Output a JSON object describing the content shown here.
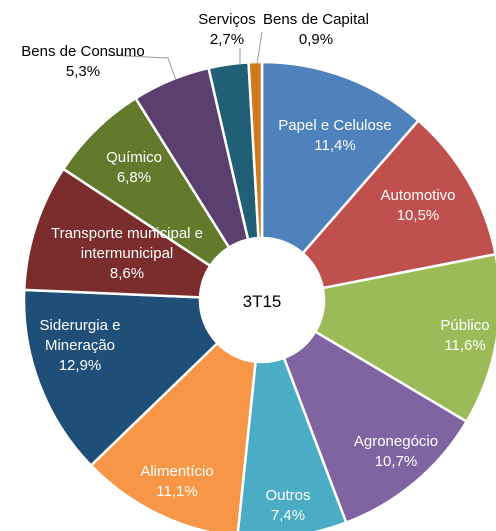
{
  "chart_data": {
    "type": "donut",
    "center_label": "3T15",
    "categories": [
      "Papel e Celulose",
      "Automotivo",
      "Público",
      "Agronegócio",
      "Outros",
      "Alimentício",
      "Siderurgia e Mineração",
      "Transporte municipal e intermunicipal",
      "Químico",
      "Bens de Consumo",
      "Serviços",
      "Bens de Capital"
    ],
    "values": [
      11.4,
      10.5,
      11.6,
      10.7,
      7.4,
      11.1,
      12.9,
      8.6,
      6.8,
      5.3,
      2.7,
      0.9
    ],
    "value_labels": [
      "11,4%",
      "10,5%",
      "11,6%",
      "10,7%",
      "7,4%",
      "11,1%",
      "12,9%",
      "8,6%",
      "6,8%",
      "5,3%",
      "2,7%",
      "0,9%"
    ],
    "colors": [
      "#4f81bd",
      "#c0504d",
      "#9bbb59",
      "#8064a2",
      "#4bacc6",
      "#f79646",
      "#1f4e79",
      "#7b2c2c",
      "#637a2c",
      "#5b3f6e",
      "#215f77",
      "#d07a1e"
    ]
  }
}
